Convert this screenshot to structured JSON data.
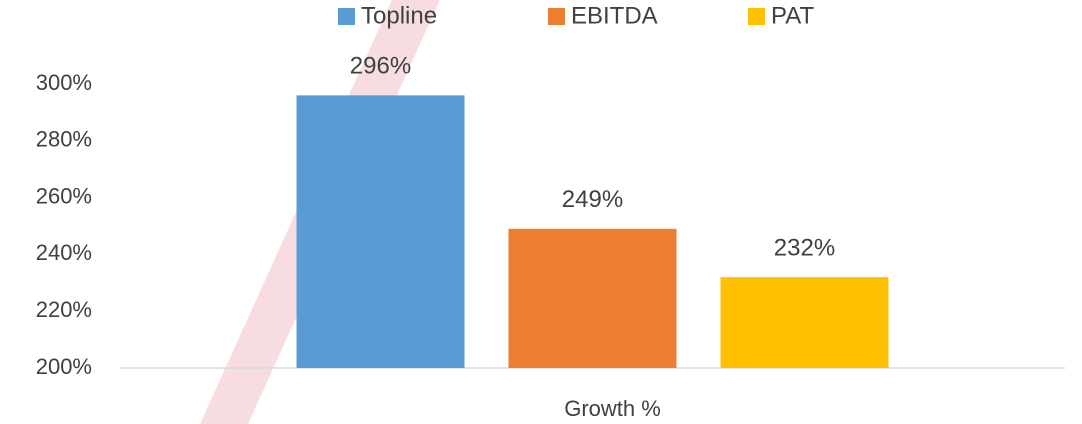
{
  "chart_data": {
    "type": "bar",
    "categories": [
      "Growth %"
    ],
    "series": [
      {
        "name": "Topline",
        "color": "#5b9bd5",
        "values": [
          296
        ],
        "value_labels": [
          "296%"
        ]
      },
      {
        "name": "EBITDA",
        "color": "#ed7d31",
        "values": [
          249
        ],
        "value_labels": [
          "249%"
        ]
      },
      {
        "name": "PAT",
        "color": "#ffc000",
        "values": [
          232
        ],
        "value_labels": [
          "232%"
        ]
      }
    ],
    "ylim": [
      200,
      300
    ],
    "yticks": [
      {
        "value": 200,
        "label": "200%"
      },
      {
        "value": 220,
        "label": "220%"
      },
      {
        "value": 240,
        "label": "240%"
      },
      {
        "value": 260,
        "label": "260%"
      },
      {
        "value": 280,
        "label": "280%"
      },
      {
        "value": 300,
        "label": "300%"
      }
    ],
    "grid": false,
    "legend": "top"
  }
}
